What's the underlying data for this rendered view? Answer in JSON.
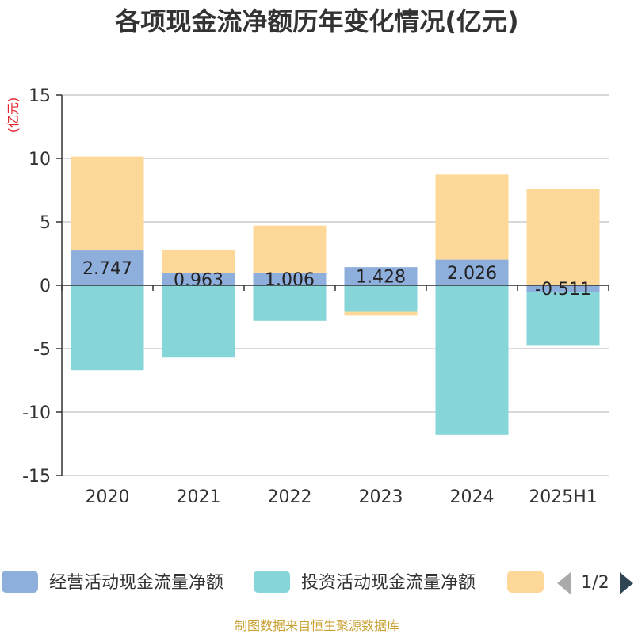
{
  "title": "各项现金流净额历年变化情况(亿元)",
  "unit_label": "(亿元)",
  "source": "制图数据来自恒生聚源数据库",
  "legend_page": "1/2",
  "colors": {
    "operating": "#8eaedb",
    "investing": "#86d5d8",
    "financing": "#fed899",
    "grid": "#cccccc",
    "axis": "#333333",
    "pager_active": "#2f4554",
    "pager_inactive": "#aaaaaa"
  },
  "chart_data": {
    "type": "bar",
    "stacked": true,
    "categories": [
      "2020",
      "2021",
      "2022",
      "2023",
      "2024",
      "2025H1"
    ],
    "ylim": [
      -15,
      15
    ],
    "yticks": [
      15,
      10,
      5,
      0,
      -5,
      -10,
      -15
    ],
    "ytick_labels": [
      "15",
      "10",
      "5",
      "0",
      "-5",
      "-10",
      "-15"
    ],
    "grid": true,
    "legend_position": "bottom",
    "series": [
      {
        "name": "经营活动现金流量净额",
        "color_key": "operating",
        "values": [
          2.747,
          0.963,
          1.006,
          1.428,
          2.026,
          -0.511
        ],
        "labels": [
          "2.747",
          "0.963",
          "1.006",
          "1.428",
          "2.026",
          "-0.511"
        ]
      },
      {
        "name": "投资活动现金流量净额",
        "color_key": "investing",
        "values": [
          -6.7,
          -5.7,
          -2.8,
          -2.1,
          -11.8,
          -4.2
        ]
      },
      {
        "name": "",
        "color_key": "financing",
        "values": [
          7.4,
          1.8,
          3.7,
          -0.3,
          6.7,
          7.6
        ]
      }
    ]
  }
}
